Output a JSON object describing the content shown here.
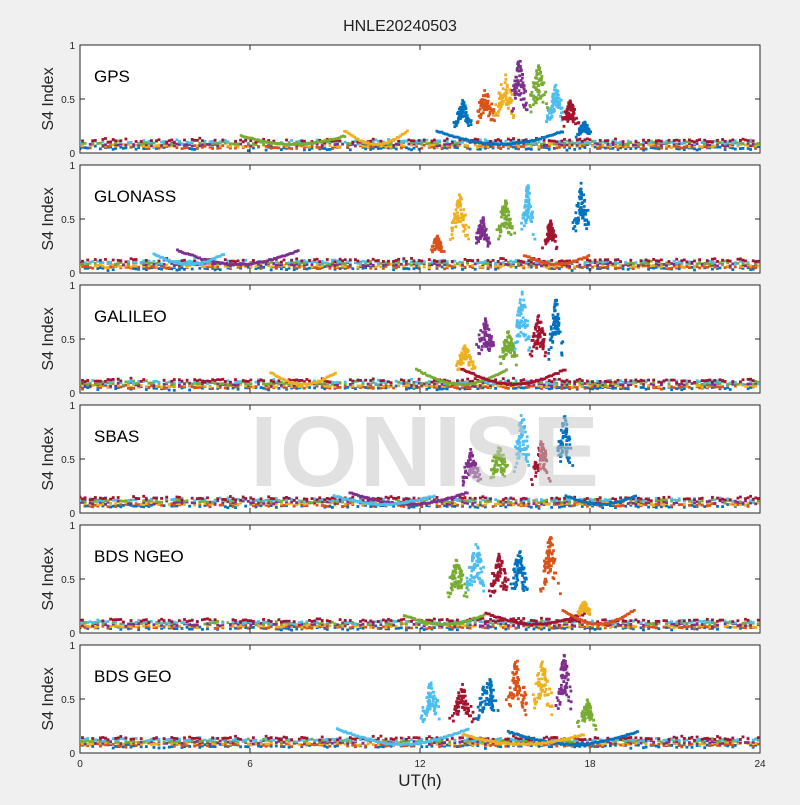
{
  "title": "HNLE20240503",
  "watermark": "IONISE",
  "chart_data": {
    "type": "scatter",
    "xlabel": "UT(h)",
    "ylabel": "S4 Index",
    "xlim": [
      0,
      24
    ],
    "ylim": [
      0,
      1
    ],
    "xticks": [
      0,
      6,
      12,
      18,
      24
    ],
    "yticks": [
      0,
      0.5,
      1
    ],
    "grid": false,
    "colors": [
      "#0072BD",
      "#D95319",
      "#EDB120",
      "#7E2F8E",
      "#77AC30",
      "#4DBEEE",
      "#A2142F"
    ],
    "panels": [
      {
        "name": "GPS",
        "baseline": 0.08,
        "events": [
          {
            "x": 13.5,
            "y": 0.5,
            "w": 0.4
          },
          {
            "x": 14.3,
            "y": 0.6,
            "w": 0.5
          },
          {
            "x": 15.0,
            "y": 0.75,
            "w": 0.5
          },
          {
            "x": 15.5,
            "y": 0.9,
            "w": 0.4
          },
          {
            "x": 16.2,
            "y": 0.85,
            "w": 0.5
          },
          {
            "x": 16.8,
            "y": 0.65,
            "w": 0.4
          },
          {
            "x": 17.3,
            "y": 0.5,
            "w": 0.4
          },
          {
            "x": 17.8,
            "y": 0.3,
            "w": 0.3
          }
        ]
      },
      {
        "name": "GLONASS",
        "baseline": 0.08,
        "events": [
          {
            "x": 12.6,
            "y": 0.35,
            "w": 0.3
          },
          {
            "x": 13.4,
            "y": 0.75,
            "w": 0.4
          },
          {
            "x": 14.2,
            "y": 0.55,
            "w": 0.3
          },
          {
            "x": 15.0,
            "y": 0.7,
            "w": 0.4
          },
          {
            "x": 15.8,
            "y": 0.85,
            "w": 0.3
          },
          {
            "x": 16.6,
            "y": 0.5,
            "w": 0.3
          },
          {
            "x": 17.7,
            "y": 0.85,
            "w": 0.4
          }
        ]
      },
      {
        "name": "GALILEO",
        "baseline": 0.08,
        "events": [
          {
            "x": 13.6,
            "y": 0.45,
            "w": 0.4
          },
          {
            "x": 14.3,
            "y": 0.7,
            "w": 0.5
          },
          {
            "x": 15.1,
            "y": 0.6,
            "w": 0.4
          },
          {
            "x": 15.6,
            "y": 0.95,
            "w": 0.4
          },
          {
            "x": 16.2,
            "y": 0.75,
            "w": 0.4
          },
          {
            "x": 16.8,
            "y": 0.9,
            "w": 0.3
          }
        ]
      },
      {
        "name": "SBAS",
        "baseline": 0.1,
        "events": [
          {
            "x": 13.8,
            "y": 0.6,
            "w": 0.4
          },
          {
            "x": 14.8,
            "y": 0.65,
            "w": 0.5
          },
          {
            "x": 15.6,
            "y": 0.95,
            "w": 0.4
          },
          {
            "x": 16.3,
            "y": 0.7,
            "w": 0.4
          },
          {
            "x": 17.1,
            "y": 0.95,
            "w": 0.4
          }
        ]
      },
      {
        "name": "BDS NGEO",
        "baseline": 0.08,
        "events": [
          {
            "x": 13.3,
            "y": 0.7,
            "w": 0.5
          },
          {
            "x": 14.0,
            "y": 0.85,
            "w": 0.5
          },
          {
            "x": 14.8,
            "y": 0.75,
            "w": 0.5
          },
          {
            "x": 15.5,
            "y": 0.8,
            "w": 0.4
          },
          {
            "x": 16.6,
            "y": 0.95,
            "w": 0.4
          },
          {
            "x": 17.8,
            "y": 0.3,
            "w": 0.3
          }
        ]
      },
      {
        "name": "BDS GEO",
        "baseline": 0.1,
        "events": [
          {
            "x": 12.4,
            "y": 0.7,
            "w": 0.4
          },
          {
            "x": 13.5,
            "y": 0.65,
            "w": 0.5
          },
          {
            "x": 14.4,
            "y": 0.75,
            "w": 0.5
          },
          {
            "x": 15.4,
            "y": 0.9,
            "w": 0.5
          },
          {
            "x": 16.3,
            "y": 0.9,
            "w": 0.5
          },
          {
            "x": 17.1,
            "y": 0.95,
            "w": 0.4
          },
          {
            "x": 17.9,
            "y": 0.5,
            "w": 0.4
          }
        ]
      }
    ]
  }
}
